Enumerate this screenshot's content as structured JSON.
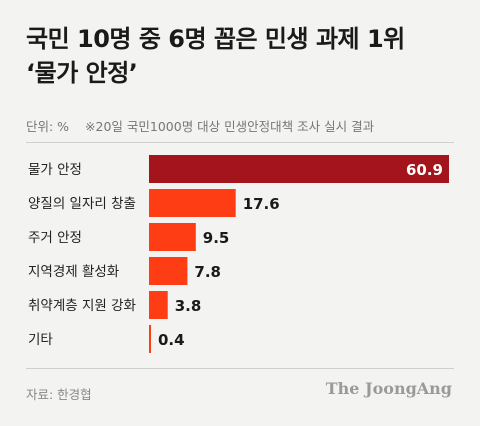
{
  "header": {
    "title_line1": "국민 10명 중 6명 꼽은 민생 과제 1위",
    "title_line2": "‘물가 안정’",
    "unit": "단위: %",
    "note": "※20일 국민1000명 대상 민생안정대책 조사 실시 결과"
  },
  "footer": {
    "source": "자료: 한경협",
    "brand": "The JoongAng"
  },
  "colors": {
    "highlight": "#a3141c",
    "bar": "#ff3d14",
    "value_on_highlight": "#ffffff",
    "value": "#1a1a1a"
  },
  "chart_data": {
    "type": "bar",
    "orientation": "horizontal",
    "title": "국민 10명 중 6명 꼽은 민생 과제 1위 ‘물가 안정’",
    "unit": "%",
    "categories": [
      "물가 안정",
      "양질의 일자리 창출",
      "주거 안정",
      "지역경제 활성화",
      "취약계층 지원 강화",
      "기타"
    ],
    "values": [
      60.9,
      17.6,
      9.5,
      7.8,
      3.8,
      0.4
    ],
    "xlim": [
      0,
      60.9
    ],
    "grid": false,
    "legend": "none"
  }
}
